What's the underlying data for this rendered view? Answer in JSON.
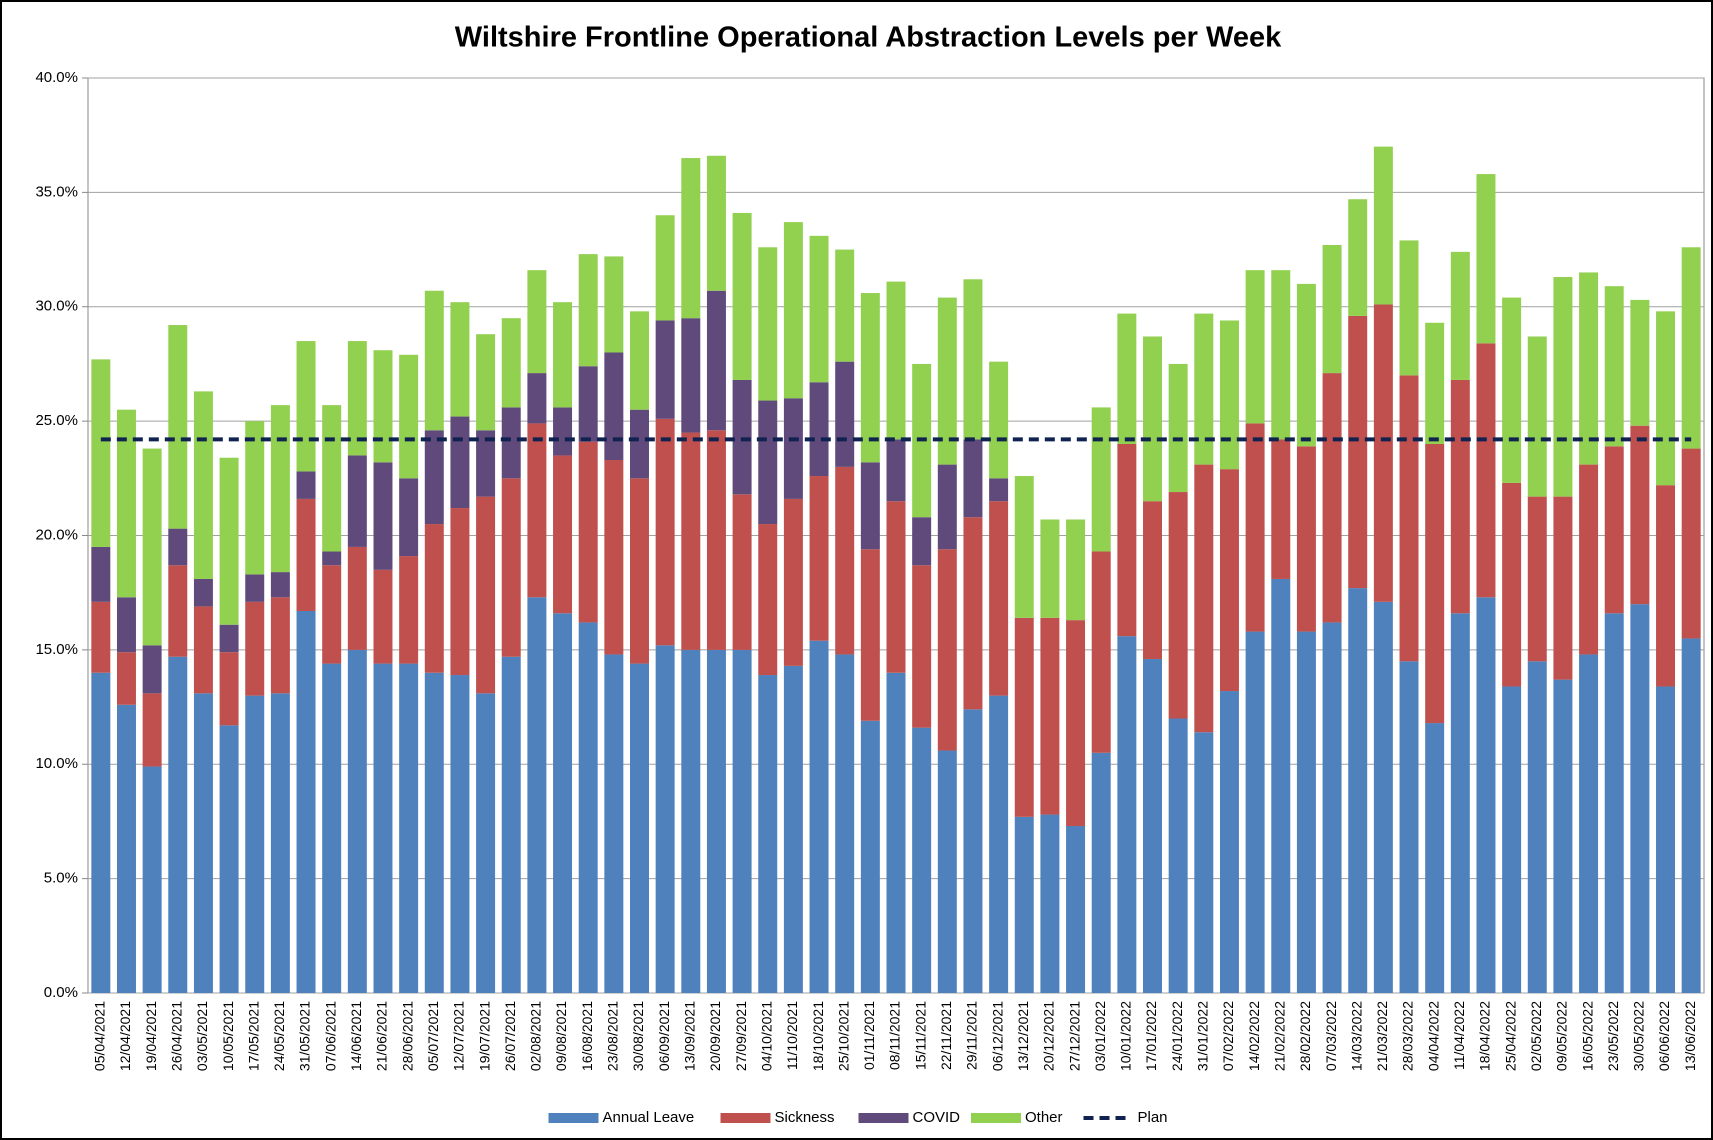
{
  "chart_data": {
    "type": "bar",
    "stacked": true,
    "title": "Wiltshire Frontline Operational Abstraction Levels per Week",
    "categories": [
      "05/04/2021",
      "12/04/2021",
      "19/04/2021",
      "26/04/2021",
      "03/05/2021",
      "10/05/2021",
      "17/05/2021",
      "24/05/2021",
      "31/05/2021",
      "07/06/2021",
      "14/06/2021",
      "21/06/2021",
      "28/06/2021",
      "05/07/2021",
      "12/07/2021",
      "19/07/2021",
      "26/07/2021",
      "02/08/2021",
      "09/08/2021",
      "16/08/2021",
      "23/08/2021",
      "30/08/2021",
      "06/09/2021",
      "13/09/2021",
      "20/09/2021",
      "27/09/2021",
      "04/10/2021",
      "11/10/2021",
      "18/10/2021",
      "25/10/2021",
      "01/11/2021",
      "08/11/2021",
      "15/11/2021",
      "22/11/2021",
      "29/11/2021",
      "06/12/2021",
      "13/12/2021",
      "20/12/2021",
      "27/12/2021",
      "03/01/2022",
      "10/01/2022",
      "17/01/2022",
      "24/01/2022",
      "31/01/2022",
      "07/02/2022",
      "14/02/2022",
      "21/02/2022",
      "28/02/2022",
      "07/03/2022",
      "14/03/2022",
      "21/03/2022",
      "28/03/2022",
      "04/04/2022",
      "11/04/2022",
      "18/04/2022",
      "25/04/2022",
      "02/05/2022",
      "09/05/2022",
      "16/05/2022",
      "23/05/2022",
      "30/05/2022",
      "06/06/2022",
      "13/06/2022"
    ],
    "series": [
      {
        "name": "Annual Leave",
        "color": "#4f81bd",
        "values": [
          14.0,
          12.6,
          9.9,
          14.7,
          13.1,
          11.7,
          13.0,
          13.1,
          16.7,
          14.4,
          15.0,
          14.4,
          14.4,
          14.0,
          13.9,
          13.1,
          14.7,
          17.3,
          16.6,
          16.2,
          14.8,
          14.4,
          15.2,
          15.0,
          15.0,
          15.0,
          13.9,
          14.3,
          15.4,
          14.8,
          11.9,
          14.0,
          11.6,
          10.6,
          12.4,
          13.0,
          7.7,
          7.8,
          7.3,
          10.5,
          15.6,
          14.6,
          12.0,
          11.4,
          13.2,
          15.8,
          18.1,
          15.8,
          16.2,
          17.7,
          17.1,
          14.5,
          11.8,
          16.6,
          17.3,
          13.4,
          14.5,
          13.7,
          14.8,
          16.6,
          17.0,
          13.4,
          15.5
        ]
      },
      {
        "name": "Sickness",
        "color": "#c0504d",
        "values": [
          3.1,
          2.3,
          3.2,
          4.0,
          3.8,
          3.2,
          4.1,
          4.2,
          4.9,
          4.3,
          4.5,
          4.1,
          4.7,
          6.5,
          7.3,
          8.6,
          7.8,
          7.6,
          6.9,
          7.9,
          8.5,
          8.1,
          9.9,
          9.5,
          9.6,
          6.8,
          6.6,
          7.3,
          7.2,
          8.2,
          7.5,
          7.5,
          7.1,
          8.8,
          8.4,
          8.5,
          8.7,
          8.6,
          9.0,
          8.8,
          8.4,
          6.9,
          9.9,
          11.7,
          9.7,
          9.1,
          6.1,
          8.1,
          10.9,
          11.9,
          13.0,
          12.5,
          12.2,
          10.2,
          11.1,
          8.9,
          7.2,
          8.0,
          8.3,
          7.3,
          7.8,
          8.8,
          8.3
        ]
      },
      {
        "name": "COVID",
        "color": "#604a7b",
        "values": [
          2.4,
          2.4,
          2.1,
          1.6,
          1.2,
          1.2,
          1.2,
          1.1,
          1.2,
          0.6,
          4.0,
          4.7,
          3.4,
          4.1,
          4.0,
          2.9,
          3.1,
          2.2,
          2.1,
          3.3,
          4.7,
          3.0,
          4.3,
          5.0,
          6.1,
          5.0,
          5.4,
          4.4,
          4.1,
          4.6,
          3.8,
          2.7,
          2.1,
          3.7,
          3.4,
          1.0,
          0,
          0,
          0,
          0,
          0,
          0,
          0,
          0,
          0,
          0,
          0,
          0,
          0,
          0,
          0,
          0,
          0,
          0,
          0,
          0,
          0,
          0,
          0,
          0,
          0,
          0,
          0
        ]
      },
      {
        "name": "Other",
        "color": "#92d050",
        "values": [
          8.2,
          8.2,
          8.6,
          8.9,
          8.2,
          7.3,
          6.7,
          7.3,
          5.7,
          6.4,
          5.0,
          4.9,
          5.4,
          6.1,
          5.0,
          4.2,
          3.9,
          4.5,
          4.6,
          4.9,
          4.2,
          4.3,
          4.6,
          7.0,
          5.9,
          7.3,
          6.7,
          7.7,
          6.4,
          4.9,
          7.4,
          6.9,
          6.7,
          7.3,
          7.0,
          5.1,
          6.2,
          4.3,
          4.4,
          6.3,
          5.7,
          7.2,
          5.6,
          6.6,
          6.5,
          6.7,
          7.4,
          7.1,
          5.6,
          5.1,
          6.9,
          5.9,
          5.3,
          5.6,
          7.4,
          8.1,
          7.0,
          9.6,
          8.4,
          7.0,
          5.5,
          7.6,
          8.8
        ]
      },
      {
        "name": "Plan",
        "color": "#0f2250",
        "type": "line",
        "dashed": true,
        "values": [
          24.2,
          24.2,
          24.2,
          24.2,
          24.2,
          24.2,
          24.2,
          24.2,
          24.2,
          24.2,
          24.2,
          24.2,
          24.2,
          24.2,
          24.2,
          24.2,
          24.2,
          24.2,
          24.2,
          24.2,
          24.2,
          24.2,
          24.2,
          24.2,
          24.2,
          24.2,
          24.2,
          24.2,
          24.2,
          24.2,
          24.2,
          24.2,
          24.2,
          24.2,
          24.2,
          24.2,
          24.2,
          24.2,
          24.2,
          24.2,
          24.2,
          24.2,
          24.2,
          24.2,
          24.2,
          24.2,
          24.2,
          24.2,
          24.2,
          24.2,
          24.2,
          24.2,
          24.2,
          24.2,
          24.2,
          24.2,
          24.2,
          24.2,
          24.2,
          24.2,
          24.2,
          24.2,
          24.2
        ]
      }
    ],
    "ylim": [
      0,
      40
    ],
    "yticks": [
      {
        "value": 0,
        "label": "0.0%"
      },
      {
        "value": 5,
        "label": "5.0%"
      },
      {
        "value": 10,
        "label": "10.0%"
      },
      {
        "value": 15,
        "label": "15.0%"
      },
      {
        "value": 20,
        "label": "20.0%"
      },
      {
        "value": 25,
        "label": "25.0%"
      },
      {
        "value": 30,
        "label": "30.0%"
      },
      {
        "value": 35,
        "label": "35.0%"
      },
      {
        "value": 40,
        "label": "40.0%"
      }
    ],
    "grid": true,
    "legend": "bottom"
  }
}
